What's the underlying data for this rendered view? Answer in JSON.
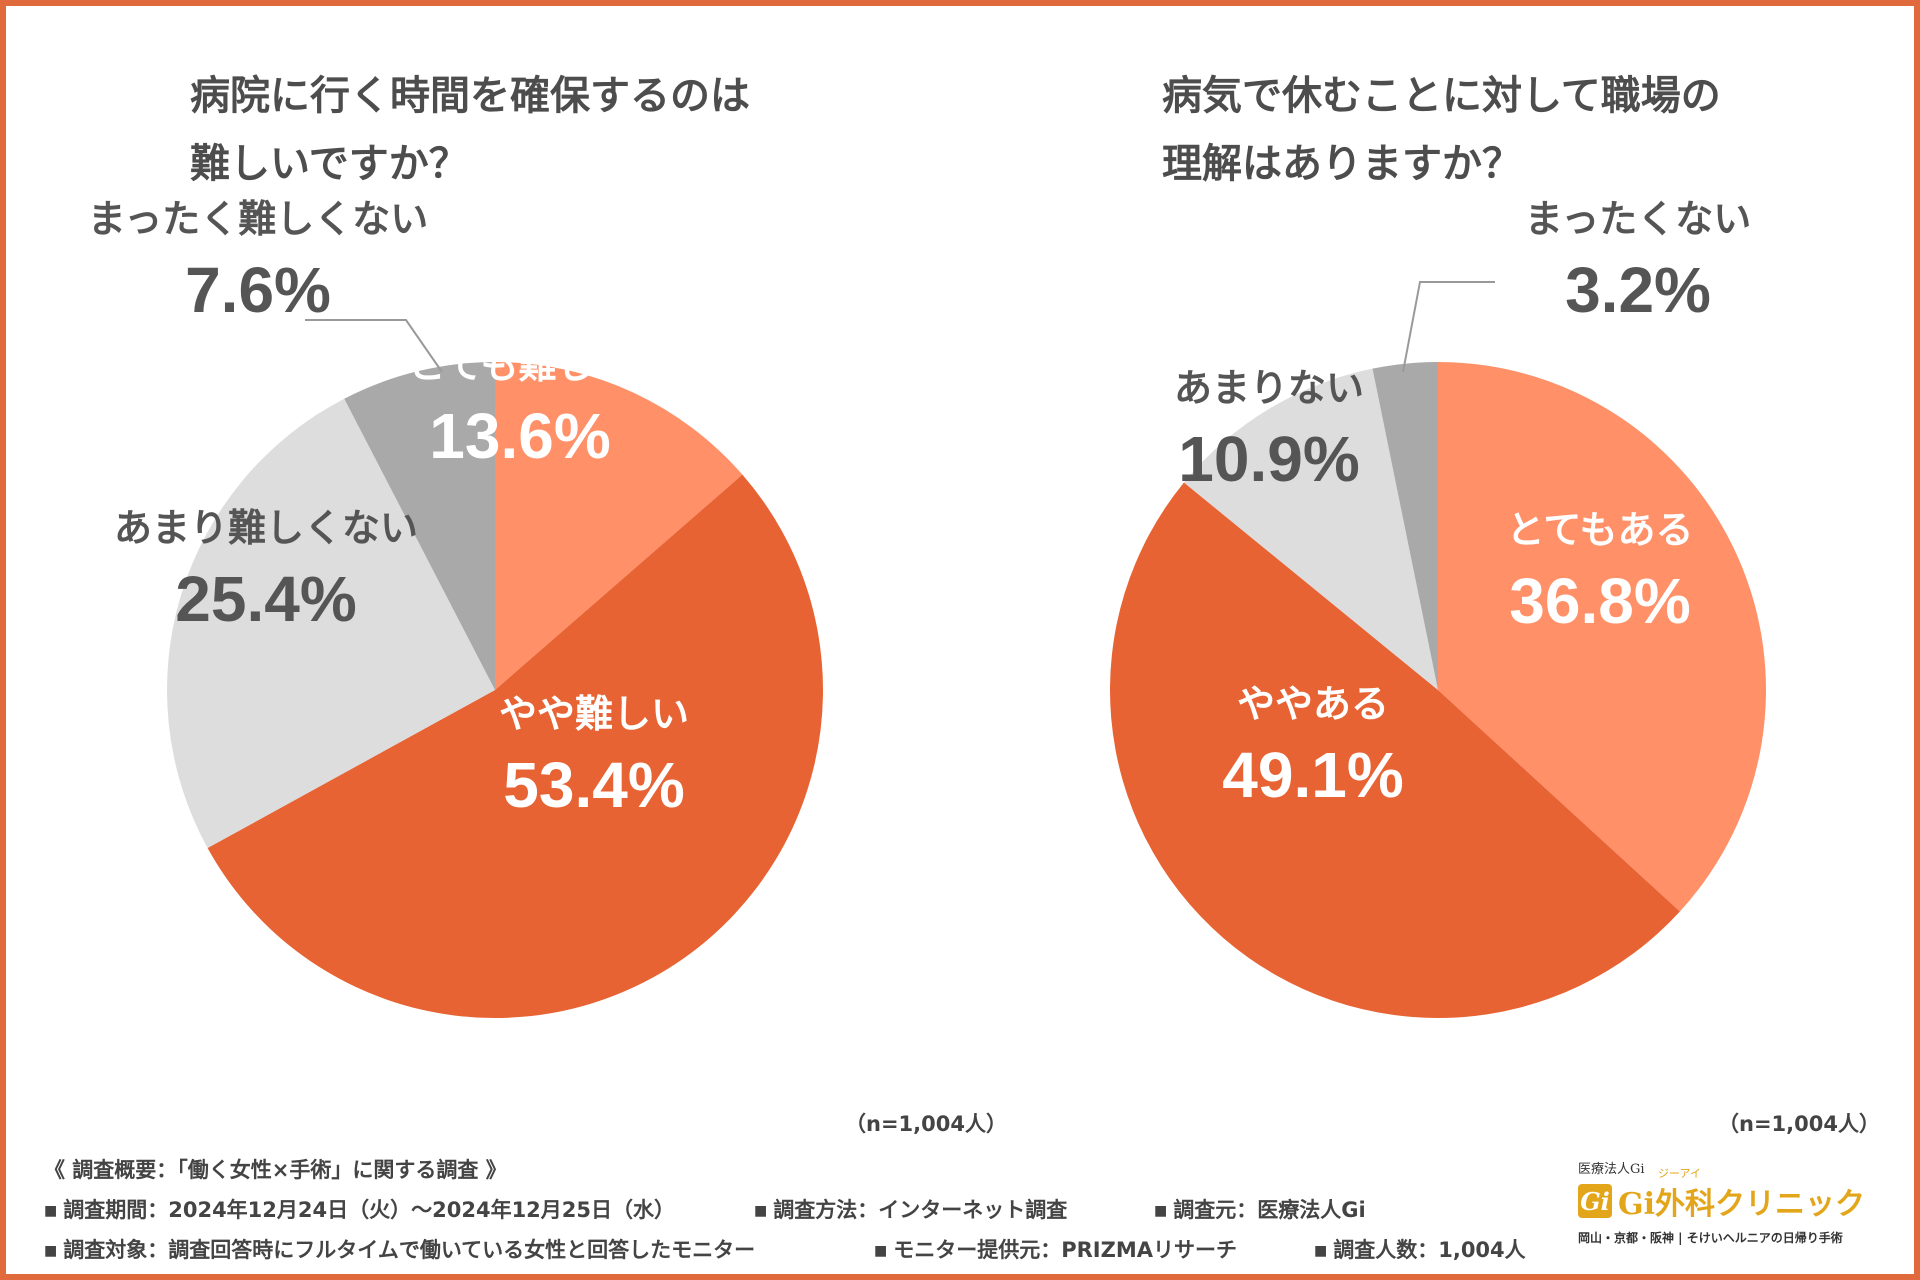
{
  "colors": {
    "frame": "#e06a3c",
    "very": "#ff9068",
    "somewhat": "#e86333",
    "little": "#dddddd",
    "none": "#a9a9a9",
    "label_light": "#ffffff",
    "label_dark": "#555555",
    "logo": "#e3a51a"
  },
  "chart_data": [
    {
      "type": "pie",
      "title": [
        "病院に行く時間を確保するのは",
        "難しいですか？"
      ],
      "sample": "（n=1,004人）",
      "categories": [
        "とても難しい",
        "やや難しい",
        "あまり難しくない",
        "まったく難しくない"
      ],
      "values": [
        13.6,
        53.4,
        25.4,
        7.6
      ],
      "value_labels": [
        "13.6%",
        "53.4%",
        "25.4%",
        "7.6%"
      ],
      "start": "12 o'clock",
      "direction": "clockwise"
    },
    {
      "type": "pie",
      "title": [
        "病気で休むことに対して職場の",
        "理解はありますか？"
      ],
      "sample": "（n=1,004人）",
      "categories": [
        "とてもある",
        "ややある",
        "あまりない",
        "まったくない"
      ],
      "values": [
        36.8,
        49.1,
        10.9,
        3.2
      ],
      "value_labels": [
        "36.8%",
        "49.1%",
        "10.9%",
        "3.2%"
      ],
      "start": "12 o'clock",
      "direction": "clockwise"
    }
  ],
  "footer": {
    "heading": "《 調査概要：「働く女性×手術」に関する調査 》",
    "bullet": "■",
    "line1": [
      "調査期間：2024年12月24日（火）～2024年12月25日（水）",
      "調査方法：インターネット調査",
      "調査元：医療法人Gi"
    ],
    "line2": [
      "調査対象：調査回答時にフルタイムで働いている女性と回答したモニター",
      "モニター提供元：PRIZMAリサーチ",
      "調査人数：1,004人"
    ]
  },
  "logo": {
    "corp": "医療法人Gi",
    "mark": "Gi",
    "name": "Gi外科クリニック",
    "ruby": "ジーアイ",
    "tagline": "岡山・京都・阪神 | そけいヘルニアの日帰り手術"
  }
}
